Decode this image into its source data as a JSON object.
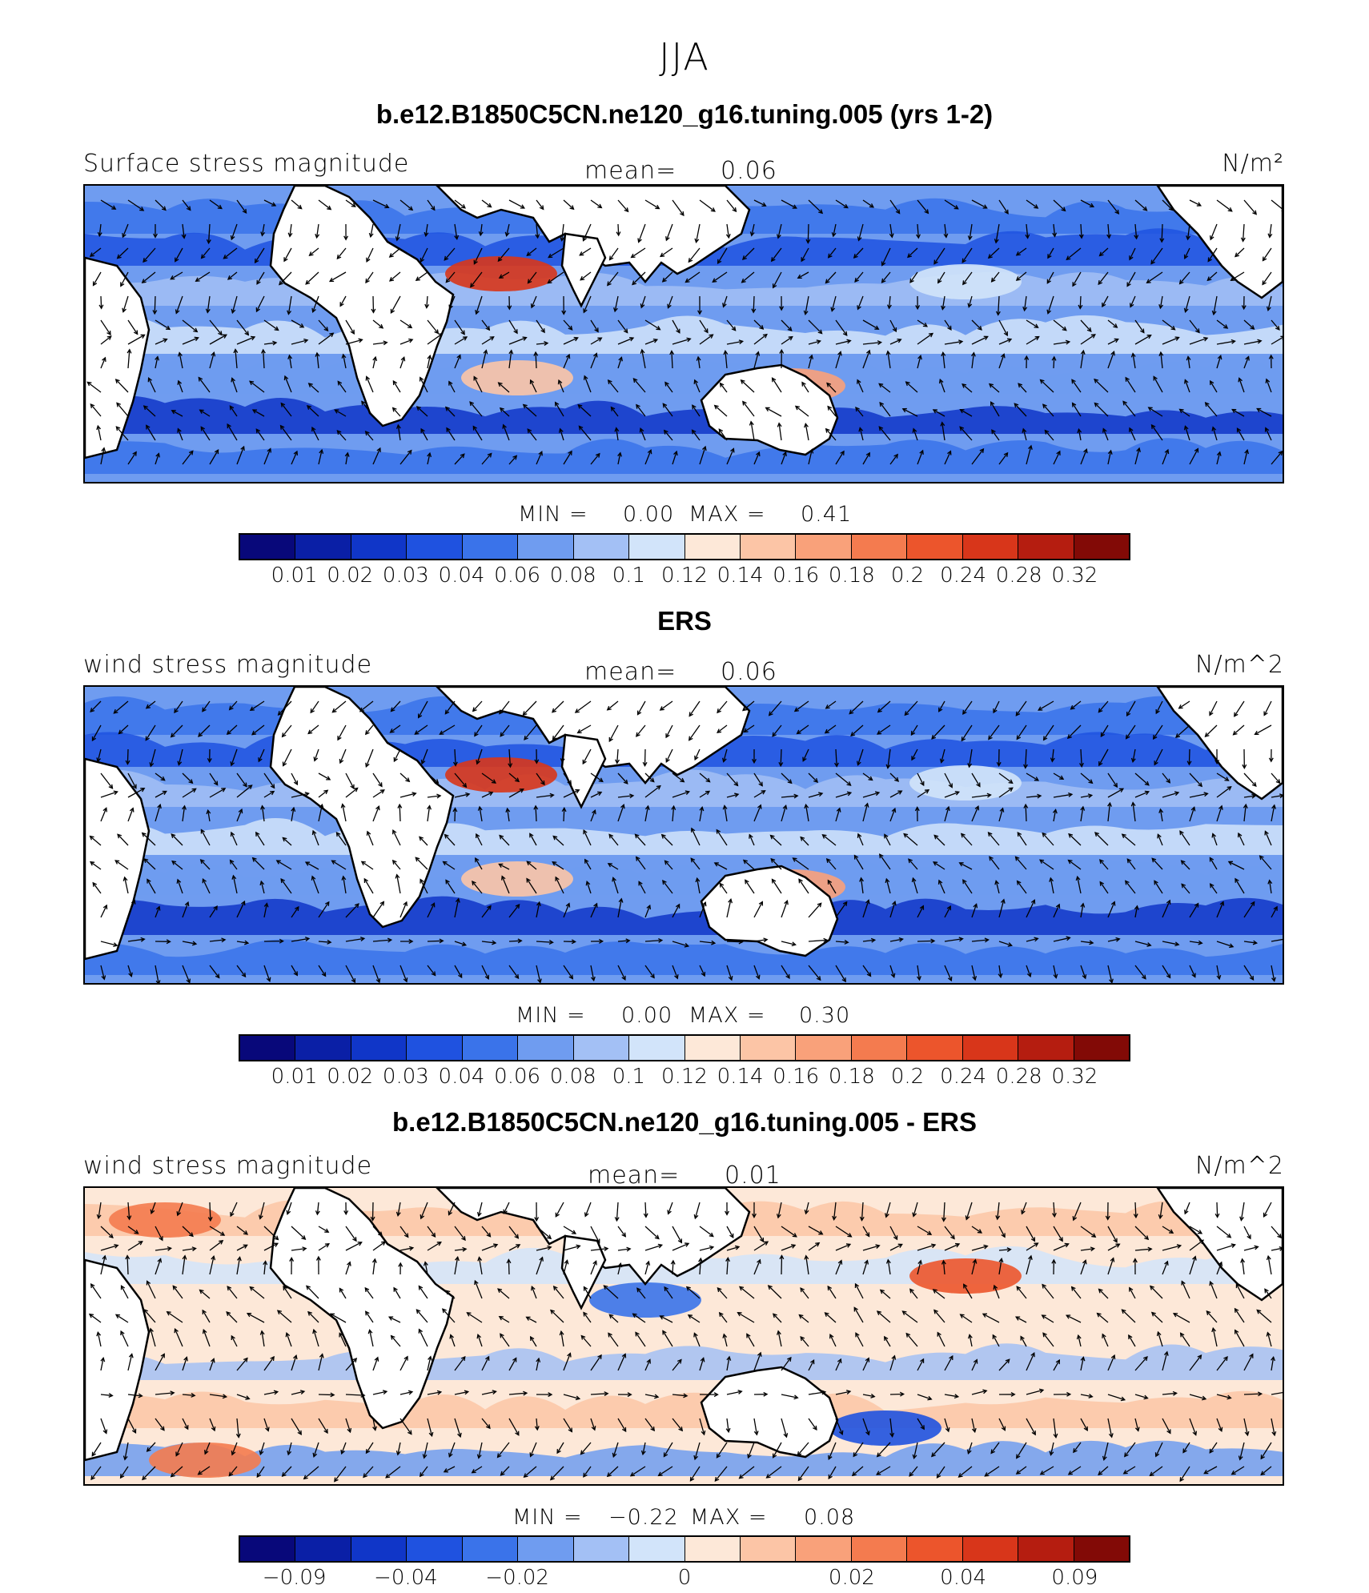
{
  "season": "JJA",
  "panels": [
    {
      "title": "b.e12.B1850C5CN.ne120_g16.tuning.005 (yrs 1-2)",
      "left_label": "Surface stress magnitude",
      "mean_label": "mean=",
      "mean_value": "0.06",
      "units": "N/m²",
      "min_label": "MIN =",
      "min_value": "0.00",
      "max_label": "MAX =",
      "max_value": "0.41",
      "colorbar": {
        "colors": [
          "#08087a",
          "#0a1fa6",
          "#1036c8",
          "#1f52e0",
          "#3a73ea",
          "#6f9cf0",
          "#a3c0f5",
          "#d2e4fa",
          "#fde8d8",
          "#fcc5a6",
          "#f9a17a",
          "#f47b4f",
          "#ec552c",
          "#d8361a",
          "#b51d10",
          "#820a06"
        ],
        "tick_labels": [
          "0.01",
          "0.02",
          "0.03",
          "0.04",
          "0.06",
          "0.08",
          "0.1",
          "0.12",
          "0.14",
          "0.16",
          "0.18",
          "0.2",
          "0.24",
          "0.28",
          "0.32"
        ]
      }
    },
    {
      "title": "ERS",
      "left_label": "wind stress magnitude",
      "mean_label": "mean=",
      "mean_value": "0.06",
      "units": "N/m^2",
      "min_label": "MIN =",
      "min_value": "0.00",
      "max_label": "MAX =",
      "max_value": "0.30",
      "colorbar": {
        "colors": [
          "#08087a",
          "#0a1fa6",
          "#1036c8",
          "#1f52e0",
          "#3a73ea",
          "#6f9cf0",
          "#a3c0f5",
          "#d2e4fa",
          "#fde8d8",
          "#fcc5a6",
          "#f9a17a",
          "#f47b4f",
          "#ec552c",
          "#d8361a",
          "#b51d10",
          "#820a06"
        ],
        "tick_labels": [
          "0.01",
          "0.02",
          "0.03",
          "0.04",
          "0.06",
          "0.08",
          "0.1",
          "0.12",
          "0.14",
          "0.16",
          "0.18",
          "0.2",
          "0.24",
          "0.28",
          "0.32"
        ]
      }
    },
    {
      "title": "b.e12.B1850C5CN.ne120_g16.tuning.005 - ERS",
      "left_label": "wind stress magnitude",
      "mean_label": "mean=",
      "mean_value": "0.01",
      "units": "N/m^2",
      "min_label": "MIN =",
      "min_value": "−0.22",
      "max_label": "MAX =",
      "max_value": "0.08",
      "colorbar": {
        "colors": [
          "#08087a",
          "#0a1fa6",
          "#1036c8",
          "#1f52e0",
          "#3a73ea",
          "#6f9cf0",
          "#a3c0f5",
          "#d2e4fa",
          "#fde8d8",
          "#fcc5a6",
          "#f9a17a",
          "#f47b4f",
          "#ec552c",
          "#d8361a",
          "#b51d10",
          "#820a06"
        ],
        "tick_labels": [
          "−0.09",
          "−0.04",
          "−0.02",
          "0",
          "0.02",
          "0.04",
          "0.09"
        ]
      }
    }
  ]
}
